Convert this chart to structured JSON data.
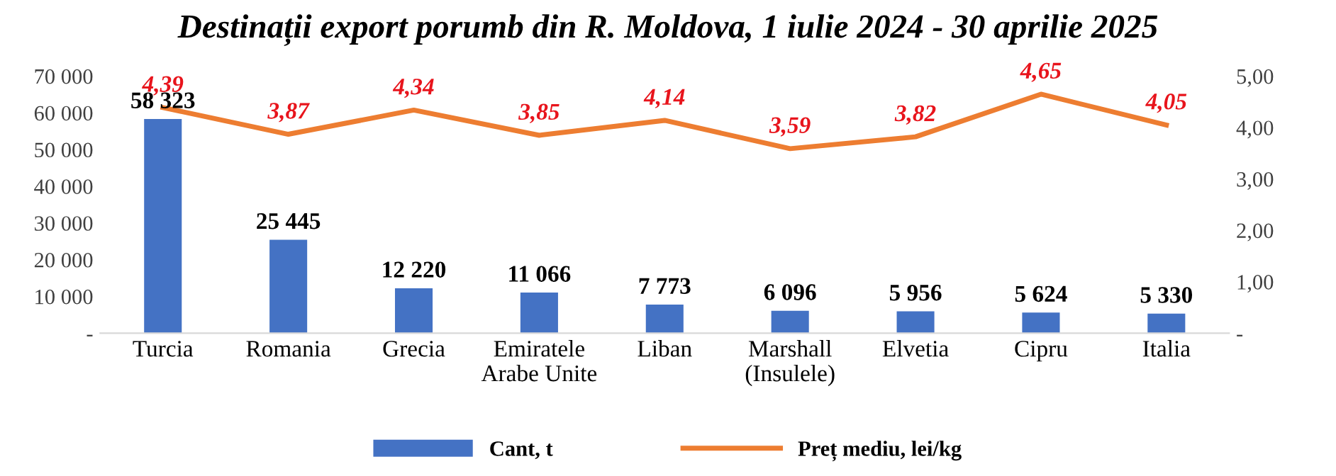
{
  "chart_data": {
    "type": "bar",
    "title": "Destinații export porumb din R. Moldova, 1 iulie 2024 - 30 aprilie 2025",
    "categories": [
      "Turcia",
      "Romania",
      "Grecia",
      "Emiratele\nArabe Unite",
      "Liban",
      "Marshall\n(Insulele)",
      "Elvetia",
      "Cipru",
      "Italia"
    ],
    "series": [
      {
        "name": "Cant, t",
        "color": "#4472c4",
        "values": [
          58323,
          25445,
          12220,
          11066,
          7773,
          6096,
          5956,
          5624,
          5330
        ],
        "value_labels": [
          "58 323",
          "25 445",
          "12 220",
          "11 066",
          "7 773",
          "6 096",
          "5 956",
          "5 624",
          "5 330"
        ]
      },
      {
        "name": "Preț mediu, lei/kg",
        "type": "line",
        "axis": "y2",
        "color": "#ed7d31",
        "values": [
          4.39,
          3.87,
          4.34,
          3.85,
          4.14,
          3.59,
          3.82,
          4.65,
          4.05
        ],
        "value_labels": [
          "4,39",
          "3,87",
          "4,34",
          "3,85",
          "4,14",
          "3,59",
          "3,82",
          "4,65",
          "4,05"
        ]
      }
    ],
    "ylim": [
      0,
      70000
    ],
    "yticks": [
      {
        "value": 0,
        "label": "-"
      },
      {
        "value": 10000,
        "label": "10 000"
      },
      {
        "value": 20000,
        "label": "20 000"
      },
      {
        "value": 30000,
        "label": "30 000"
      },
      {
        "value": 40000,
        "label": "40 000"
      },
      {
        "value": 50000,
        "label": "50 000"
      },
      {
        "value": 60000,
        "label": "60 000"
      },
      {
        "value": 70000,
        "label": "70 000"
      }
    ],
    "y2lim": [
      0,
      5
    ],
    "y2ticks": [
      {
        "value": 0,
        "label": "-"
      },
      {
        "value": 1,
        "label": "1,00"
      },
      {
        "value": 2,
        "label": "2,00"
      },
      {
        "value": 3,
        "label": "3,00"
      },
      {
        "value": 4,
        "label": "4,00"
      },
      {
        "value": 5,
        "label": "5,00"
      }
    ],
    "legend": "bottom",
    "grid": false,
    "marker": "none",
    "line_style": "solid"
  }
}
